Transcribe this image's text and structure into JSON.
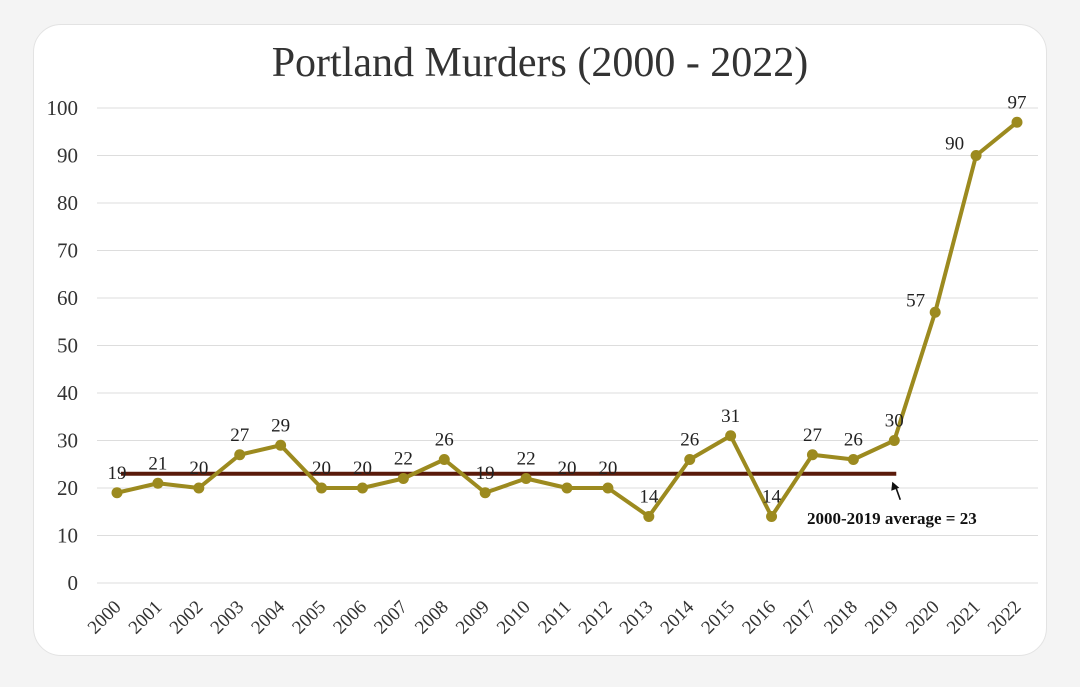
{
  "chart_data": {
    "type": "line",
    "title": "Portland Murders (2000 - 2022)",
    "xlabel": "",
    "ylabel": "",
    "categories": [
      "2000",
      "2001",
      "2002",
      "2003",
      "2004",
      "2005",
      "2006",
      "2007",
      "2008",
      "2009",
      "2010",
      "2011",
      "2012",
      "2013",
      "2014",
      "2015",
      "2016",
      "2017",
      "2018",
      "2019",
      "2020",
      "2021",
      "2022"
    ],
    "series": [
      {
        "values": [
          19,
          21,
          20,
          27,
          29,
          20,
          20,
          22,
          26,
          19,
          22,
          20,
          20,
          14,
          26,
          31,
          14,
          27,
          26,
          30,
          57,
          90,
          97
        ],
        "color": "#9c8a1f"
      }
    ],
    "ylim": [
      0,
      100
    ],
    "yticks": [
      0,
      10,
      20,
      30,
      40,
      50,
      60,
      70,
      80,
      90,
      100
    ],
    "grid": true,
    "reference_line": {
      "value": 23,
      "from": "2000",
      "to": "2019",
      "color": "#5a1a0a",
      "label": "2000-2019 average = 23"
    }
  }
}
